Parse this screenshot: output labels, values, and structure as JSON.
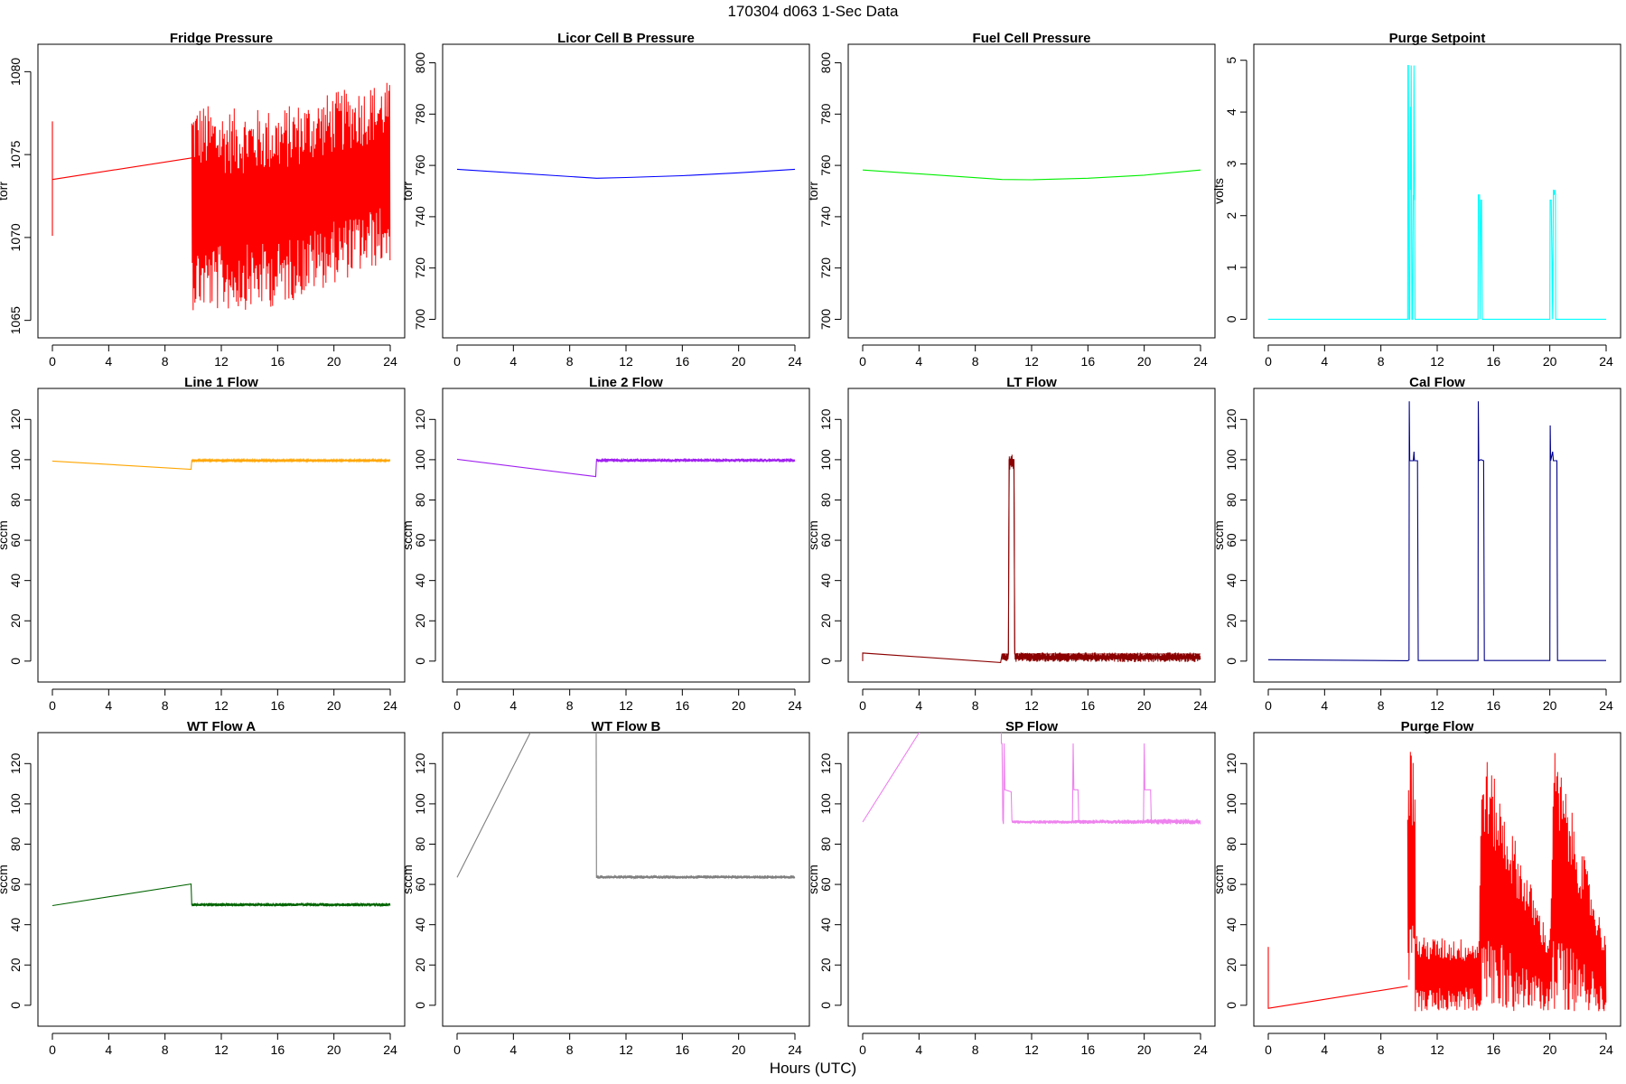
{
  "figure": {
    "title": "170304   d063   1-Sec Data",
    "xlabel": "Hours (UTC)"
  },
  "chart_data": [
    {
      "type": "line",
      "title": "Fridge Pressure",
      "ylabel": "torr",
      "color": "#ff0000",
      "xlim": [
        0,
        24
      ],
      "ylim": [
        1064.6,
        1081
      ],
      "yticks": [
        1065,
        1070,
        1075,
        1080
      ],
      "xticks": [
        0,
        4,
        8,
        12,
        16,
        20,
        24
      ],
      "series": [
        {
          "x": [
            0,
            0,
            0,
            9.9
          ],
          "y": [
            1070.1,
            1077.0,
            1073.5,
            1074.8
          ]
        }
      ],
      "noise_band": {
        "x": [
          9.9,
          12,
          16,
          20,
          24
        ],
        "low": [
          1065.6,
          1065.5,
          1065.8,
          1067.2,
          1068.5
        ],
        "high": [
          1078.3,
          1077.8,
          1077.8,
          1078.8,
          1079.5
        ]
      }
    },
    {
      "type": "line",
      "title": "Licor Cell B Pressure",
      "ylabel": "torr",
      "color": "#0000ff",
      "xlim": [
        0,
        24
      ],
      "ylim": [
        697,
        803
      ],
      "yticks": [
        700,
        720,
        740,
        760,
        780,
        800
      ],
      "xticks": [
        0,
        4,
        8,
        12,
        16,
        20,
        24
      ],
      "series": [
        {
          "x": [
            0,
            9.9,
            12,
            16,
            20,
            24
          ],
          "y": [
            758.5,
            755.0,
            755.3,
            756.0,
            757.1,
            758.5
          ]
        }
      ]
    },
    {
      "type": "line",
      "title": "Fuel Cell Pressure",
      "ylabel": "torr",
      "color": "#00ee00",
      "xlim": [
        0,
        24
      ],
      "ylim": [
        697,
        803
      ],
      "yticks": [
        700,
        720,
        740,
        760,
        780,
        800
      ],
      "xticks": [
        0,
        4,
        8,
        12,
        16,
        20,
        24
      ],
      "series": [
        {
          "x": [
            0,
            9.9,
            12,
            16,
            20,
            24
          ],
          "y": [
            758.2,
            754.5,
            754.4,
            755.0,
            756.2,
            758.2
          ]
        }
      ]
    },
    {
      "type": "line",
      "title": "Purge Setpoint",
      "ylabel": "volts",
      "color": "#00ffff",
      "xlim": [
        0,
        24
      ],
      "ylim": [
        -0.15,
        5.1
      ],
      "yticks": [
        0,
        1,
        2,
        3,
        4,
        5
      ],
      "xticks": [
        0,
        4,
        8,
        12,
        16,
        20,
        24
      ],
      "series": [
        {
          "x": [
            0,
            9.9,
            9.92,
            9.95,
            10.0,
            10.05,
            10.1,
            10.12,
            10.15,
            10.2,
            10.25,
            10.3,
            10.32,
            10.35,
            10.4,
            10.42,
            14.9,
            14.92,
            15.0,
            15.05,
            15.1,
            15.15,
            15.2,
            15.22,
            20.0,
            20.02,
            20.1,
            20.2,
            20.25,
            20.3,
            20.35,
            20.4,
            20.42,
            24
          ],
          "y": [
            0,
            0,
            4.9,
            4.9,
            0,
            0,
            4.1,
            2.5,
            4.9,
            0,
            0,
            2.4,
            2.3,
            4.9,
            2.3,
            0,
            0,
            2.4,
            2.4,
            0,
            2.3,
            2.3,
            0,
            0,
            0,
            2.3,
            2.3,
            0,
            2.5,
            2.4,
            2.5,
            2.4,
            0,
            0
          ]
        }
      ]
    },
    {
      "type": "line",
      "title": "Line 1 Flow",
      "ylabel": "sccm",
      "color": "#ffa500",
      "xlim": [
        0,
        24
      ],
      "ylim": [
        -5,
        130
      ],
      "yticks": [
        0,
        20,
        40,
        60,
        80,
        100,
        120
      ],
      "xticks": [
        0,
        4,
        8,
        12,
        16,
        20,
        24
      ],
      "series": [
        {
          "x": [
            0,
            9.85,
            9.9,
            24
          ],
          "y": [
            99.3,
            95.2,
            99.6,
            99.6
          ]
        }
      ],
      "noise_band": {
        "x": [
          9.9,
          24
        ],
        "low": [
          99.1,
          99.1
        ],
        "high": [
          100.1,
          100.1
        ]
      }
    },
    {
      "type": "line",
      "title": "Line 2 Flow",
      "ylabel": "sccm",
      "color": "#a020f0",
      "xlim": [
        0,
        24
      ],
      "ylim": [
        -5,
        130
      ],
      "yticks": [
        0,
        20,
        40,
        60,
        80,
        100,
        120
      ],
      "xticks": [
        0,
        4,
        8,
        12,
        16,
        20,
        24
      ],
      "series": [
        {
          "x": [
            0,
            9.85,
            9.9,
            24
          ],
          "y": [
            100.2,
            91.6,
            99.5,
            99.5
          ]
        }
      ],
      "noise_band": {
        "x": [
          9.9,
          24
        ],
        "low": [
          98.8,
          98.8
        ],
        "high": [
          100.6,
          100.6
        ]
      }
    },
    {
      "type": "line",
      "title": "LT Flow",
      "ylabel": "sccm",
      "color": "#8b0000",
      "xlim": [
        0,
        24
      ],
      "ylim": [
        -5,
        130
      ],
      "yticks": [
        0,
        20,
        40,
        60,
        80,
        100,
        120
      ],
      "xticks": [
        0,
        4,
        8,
        12,
        16,
        20,
        24
      ],
      "series": [
        {
          "x": [
            0,
            0,
            9.8,
            9.9,
            10.35,
            10.4,
            10.75,
            10.8,
            24
          ],
          "y": [
            0,
            4,
            -0.7,
            3.5,
            3.5,
            100,
            100,
            3.5,
            3.5
          ]
        }
      ],
      "noise_band": {
        "x": [
          9.9,
          10.35,
          10.4,
          10.75,
          10.8,
          24
        ],
        "low": [
          -0.5,
          -0.5,
          95,
          95,
          -0.5,
          -0.5
        ],
        "high": [
          4.3,
          4.3,
          102.5,
          102.5,
          4.3,
          4.3
        ]
      }
    },
    {
      "type": "line",
      "title": "Cal Flow",
      "ylabel": "sccm",
      "color": "#00008b",
      "xlim": [
        0,
        24
      ],
      "ylim": [
        -5,
        130
      ],
      "yticks": [
        0,
        20,
        40,
        60,
        80,
        100,
        120
      ],
      "xticks": [
        0,
        4,
        8,
        12,
        16,
        20,
        24
      ],
      "series": [
        {
          "x": [
            0,
            9.9,
            10.0,
            10.02,
            10.05,
            10.3,
            10.35,
            10.38,
            10.6,
            10.65,
            14.9,
            14.92,
            14.95,
            15.1,
            15.3,
            15.35,
            20.0,
            20.03,
            20.06,
            20.2,
            20.25,
            20.5,
            20.55,
            24
          ],
          "y": [
            0.7,
            0.2,
            0.5,
            129,
            99.5,
            99.5,
            104,
            99.5,
            99.5,
            0.3,
            0.3,
            129,
            99.5,
            100,
            99.5,
            0.3,
            0.3,
            117,
            99.5,
            104,
            99.5,
            99.5,
            0.3,
            0.3
          ]
        }
      ]
    },
    {
      "type": "line",
      "title": "WT Flow A",
      "ylabel": "sccm",
      "color": "#006400",
      "xlim": [
        0,
        24
      ],
      "ylim": [
        -5,
        130
      ],
      "yticks": [
        0,
        20,
        40,
        60,
        80,
        100,
        120
      ],
      "xticks": [
        0,
        4,
        8,
        12,
        16,
        20,
        24
      ],
      "series": [
        {
          "x": [
            0,
            9.85,
            9.9,
            24
          ],
          "y": [
            49.5,
            60.2,
            50.0,
            50.0
          ]
        }
      ],
      "noise_band": {
        "x": [
          9.9,
          24
        ],
        "low": [
          49.1,
          49.1
        ],
        "high": [
          50.8,
          50.8
        ]
      }
    },
    {
      "type": "line",
      "title": "WT Flow B",
      "ylabel": "sccm",
      "color": "#808080",
      "xlim": [
        0,
        24
      ],
      "ylim": [
        -5,
        130
      ],
      "yticks": [
        0,
        20,
        40,
        60,
        80,
        100,
        120
      ],
      "xticks": [
        0,
        4,
        8,
        12,
        16,
        20,
        24
      ],
      "series": [
        {
          "x": [
            0,
            9.88,
            9.88,
            9.9,
            24
          ],
          "y": [
            63.5,
            200,
            130,
            63.5,
            63.5
          ]
        }
      ],
      "noise_band": {
        "x": [
          9.9,
          24
        ],
        "low": [
          62.8,
          62.8
        ],
        "high": [
          64.5,
          64.5
        ]
      }
    },
    {
      "type": "line",
      "title": "SP Flow",
      "ylabel": "sccm",
      "color": "#ee82ee",
      "xlim": [
        0,
        24
      ],
      "ylim": [
        -5,
        130
      ],
      "yticks": [
        0,
        20,
        40,
        60,
        80,
        100,
        120
      ],
      "xticks": [
        0,
        4,
        8,
        12,
        16,
        20,
        24
      ],
      "series": [
        {
          "x": [
            0,
            9.85,
            9.85,
            9.9,
            9.95,
            10.0,
            10.05,
            10.1,
            10.55,
            10.6,
            10.65,
            14.85,
            14.9,
            14.95,
            15.0,
            15.3,
            15.35,
            19.9,
            19.95,
            20.0,
            20.05,
            20.45,
            20.5,
            24
          ],
          "y": [
            91,
            200,
            130,
            130,
            92,
            90,
            130,
            107,
            106,
            92,
            91,
            91,
            92,
            130,
            107,
            107,
            91,
            91,
            92,
            130,
            107,
            107,
            91,
            91
          ]
        }
      ],
      "noise_band": {
        "x": [
          10.6,
          14.85,
          15.4,
          19.9,
          20.5,
          24
        ],
        "low": [
          90.2,
          90.2,
          90.0,
          90.0,
          89.8,
          89.8
        ],
        "high": [
          91.8,
          91.8,
          92.2,
          92.2,
          92.6,
          92.6
        ]
      }
    },
    {
      "type": "line",
      "title": "Purge Flow",
      "ylabel": "sccm",
      "color": "#ff0000",
      "xlim": [
        0,
        24
      ],
      "ylim": [
        -5,
        130
      ],
      "yticks": [
        0,
        20,
        40,
        60,
        80,
        100,
        120
      ],
      "xticks": [
        0,
        4,
        8,
        12,
        16,
        20,
        24
      ],
      "series": [
        {
          "x": [
            0,
            0,
            0,
            9.9
          ],
          "y": [
            0,
            29,
            -1.5,
            9.5
          ]
        }
      ],
      "noise_band": {
        "x": [
          9.9,
          9.95,
          10.4,
          10.45,
          10.6,
          14.95,
          15.2,
          20.0,
          20.25,
          24
        ],
        "low": [
          -3,
          -3,
          -3,
          -3,
          -3,
          -3,
          -3,
          -3,
          -3,
          -3
        ],
        "high": [
          130,
          130,
          130,
          44,
          34,
          33,
          130,
          33,
          130,
          33
        ]
      }
    }
  ]
}
